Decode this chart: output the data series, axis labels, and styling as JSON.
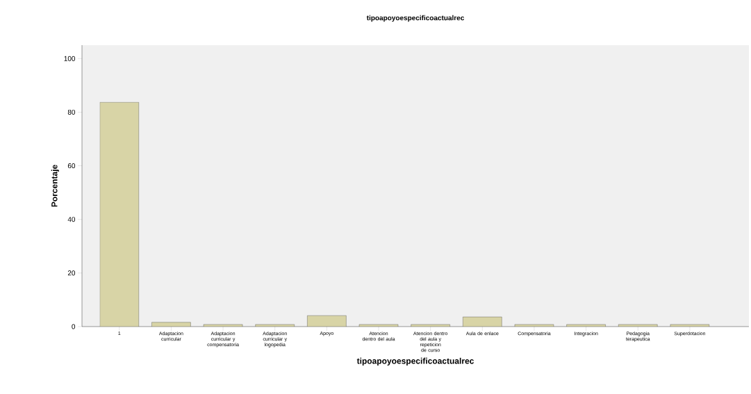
{
  "chart_data": {
    "type": "bar",
    "title": "tipoapoyoespecificoactualrec",
    "xlabel": "tipoapoyoespecificoactualrec",
    "ylabel": "Porcentaje",
    "categories": [
      "1",
      "Adaptacion curricular",
      "Adaptacion curricular y compensatoria",
      "Adaptacion curricular y logopedia",
      "Apoyo",
      "Atencion dentro del aula",
      "Atencion dentro del aula y repeticion de curso",
      "Aula de enlace",
      "Compensatoria",
      "Integracion",
      "Pedagogia terapeutica",
      "Superdotacion"
    ],
    "values": [
      83.7,
      1.6,
      0.8,
      0.8,
      4.1,
      0.8,
      0.8,
      3.6,
      0.8,
      0.8,
      0.8,
      0.8
    ],
    "color": "#d8d4a6",
    "ylim": [
      0,
      105
    ],
    "yticks": [
      0,
      20,
      40,
      60,
      80,
      100
    ],
    "grid": false
  }
}
